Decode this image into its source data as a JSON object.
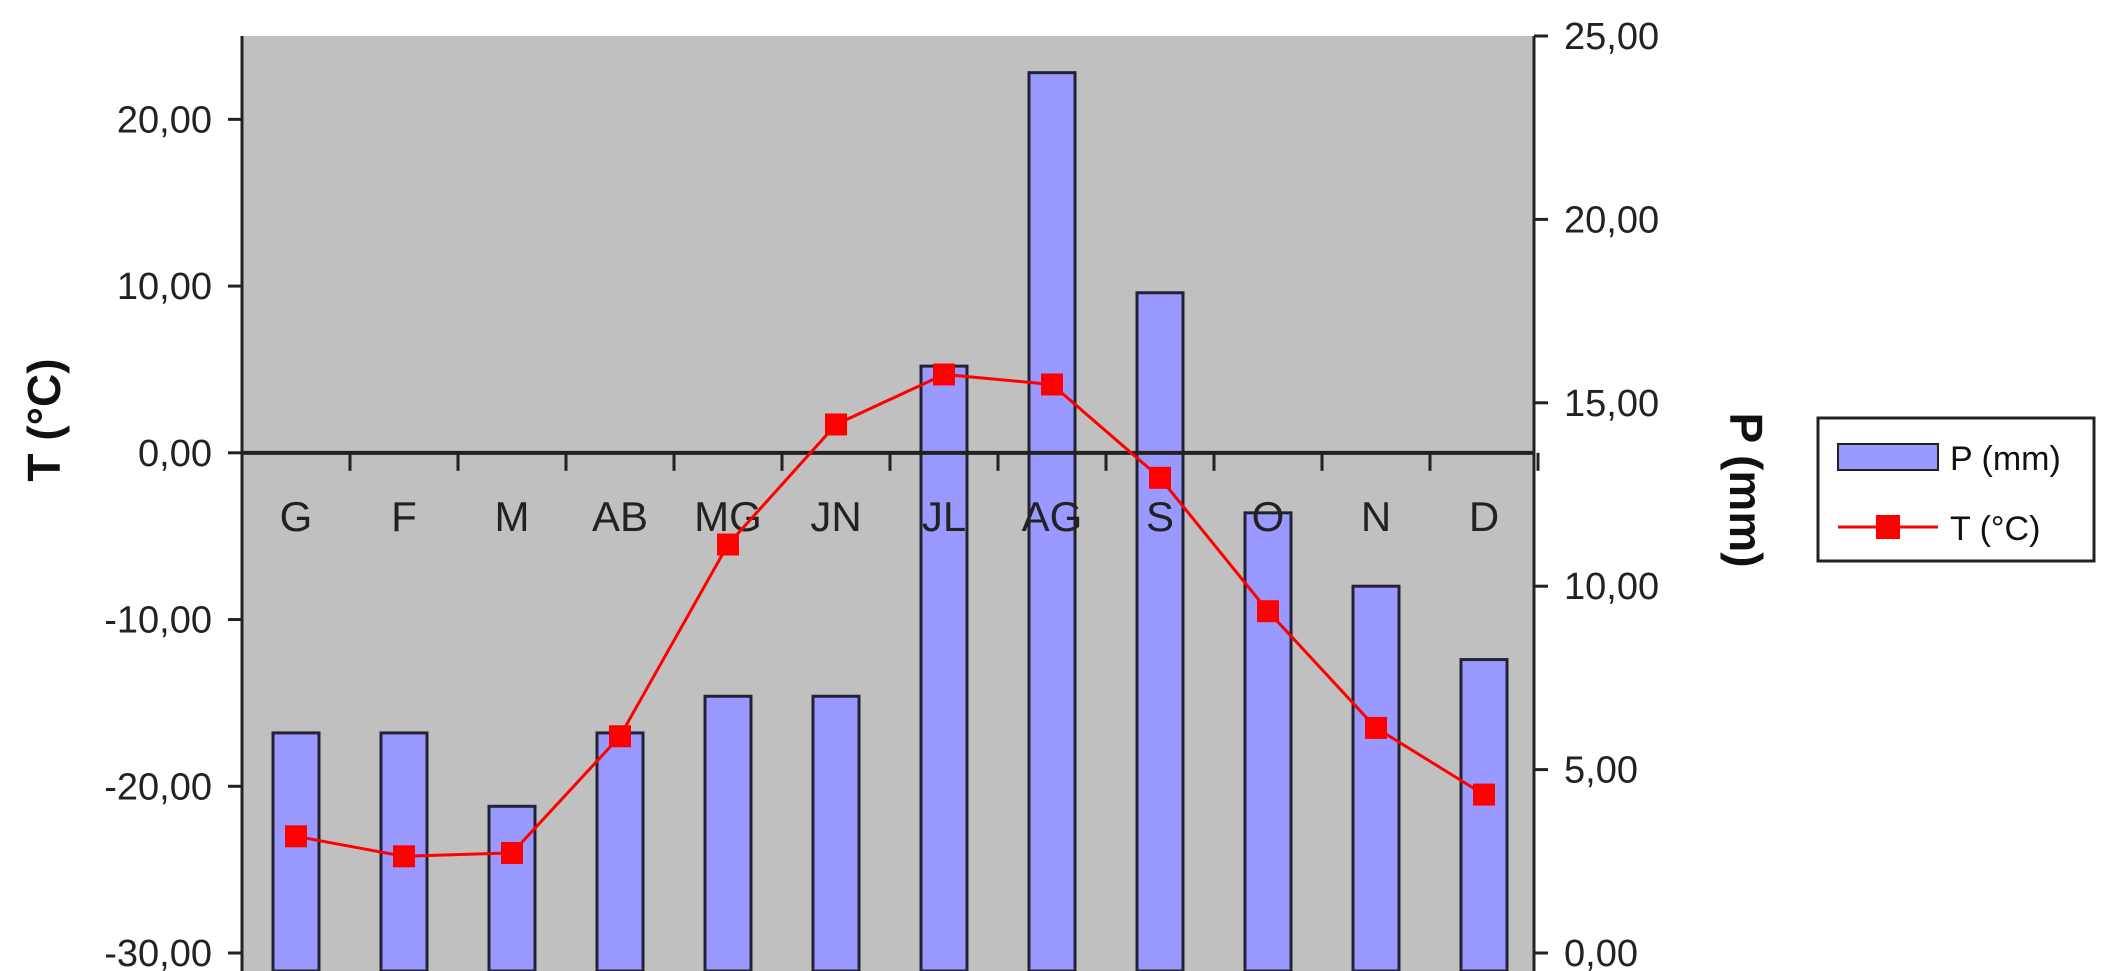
{
  "chart_data": {
    "type": "bar",
    "categories": [
      "G",
      "F",
      "M",
      "AB",
      "MG",
      "JN",
      "JL",
      "AG",
      "S",
      "O",
      "N",
      "D"
    ],
    "series": [
      {
        "name": "P (mm)",
        "type": "bar",
        "axis": "right",
        "color": "#9999ff",
        "values": [
          6,
          6,
          4,
          6,
          7,
          7,
          16,
          24,
          18,
          12,
          10,
          8
        ]
      },
      {
        "name": "T (°C)",
        "type": "line",
        "axis": "left",
        "color": "#ff0000",
        "values": [
          -23.0,
          -24.2,
          -24.0,
          -17.0,
          -5.5,
          1.7,
          4.7,
          4.1,
          -1.5,
          -9.5,
          -16.5,
          -20.5
        ]
      }
    ],
    "ylabel": "T (°C)",
    "ylim": [
      -30,
      25
    ],
    "yticks": [
      "-30,00",
      "-20,00",
      "-10,00",
      "0,00",
      "10,00",
      "20,00"
    ],
    "y2label": "P (mm)",
    "y2lim": [
      0,
      25
    ],
    "y2ticks": [
      "0,00",
      "5,00",
      "10,00",
      "15,00",
      "20,00",
      "25,00"
    ],
    "plot_background": "#c0c0c0",
    "grid": false,
    "legend_position": "right"
  }
}
